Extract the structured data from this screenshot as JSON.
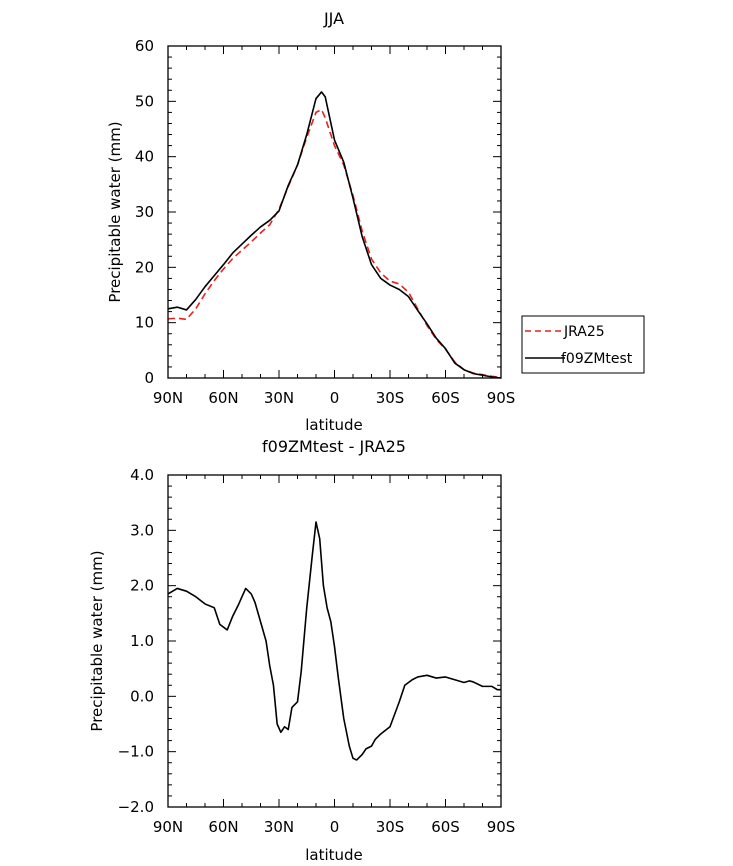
{
  "chart_data": [
    {
      "type": "line",
      "title": "JJA",
      "xlabel": "latitude",
      "ylabel": "Precipitable water (mm)",
      "xlim": [
        90,
        -90
      ],
      "ylim": [
        0,
        60
      ],
      "x_tick_values": [
        90,
        60,
        30,
        0,
        -30,
        -60,
        -90
      ],
      "x_tick_labels": [
        "90N",
        "60N",
        "30N",
        "0",
        "30S",
        "60S",
        "90S"
      ],
      "y_ticks": [
        0,
        10,
        20,
        30,
        40,
        50,
        60
      ],
      "grid": false,
      "legend": "right",
      "x": [
        90,
        85,
        80,
        75,
        70,
        65,
        60,
        55,
        50,
        45,
        40,
        35,
        30,
        25,
        20,
        15,
        10,
        7,
        5,
        0,
        -5,
        -10,
        -15,
        -20,
        -25,
        -30,
        -35,
        -40,
        -45,
        -50,
        -55,
        -60,
        -65,
        -70,
        -75,
        -80,
        -85,
        -90
      ],
      "series": [
        {
          "name": "JRA25",
          "color": "#e8211d",
          "dash": "dashed",
          "values": [
            10.7,
            10.8,
            10.6,
            12.5,
            15.2,
            17.6,
            19.7,
            21.6,
            23.1,
            24.6,
            26.2,
            27.7,
            30.5,
            34.6,
            38.5,
            43.5,
            48.0,
            48.5,
            47.0,
            42.0,
            38.5,
            33.0,
            26.5,
            21.5,
            19.0,
            17.5,
            17.0,
            15.5,
            12.5,
            9.5,
            7.0,
            5.2,
            2.9,
            1.5,
            0.9,
            0.6,
            0.3,
            0.1
          ]
        },
        {
          "name": "f09ZMtest",
          "color": "#000000",
          "dash": "solid",
          "values": [
            12.5,
            12.8,
            12.3,
            14.2,
            16.5,
            18.5,
            20.5,
            22.6,
            24.2,
            25.8,
            27.3,
            28.5,
            30.2,
            34.8,
            38.5,
            44.0,
            50.5,
            51.7,
            50.8,
            43.0,
            39.0,
            32.5,
            25.5,
            20.5,
            18.0,
            16.8,
            16.0,
            14.7,
            12.2,
            9.8,
            7.2,
            5.3,
            2.7,
            1.5,
            0.8,
            0.5,
            0.2,
            0.0
          ]
        }
      ]
    },
    {
      "type": "line",
      "title": "f09ZMtest - JRA25",
      "xlabel": "latitude",
      "ylabel": "Precipitable water (mm)",
      "xlim": [
        90,
        -90
      ],
      "ylim": [
        -2,
        4
      ],
      "x_tick_values": [
        90,
        60,
        30,
        0,
        -30,
        -60,
        -90
      ],
      "x_tick_labels": [
        "90N",
        "60N",
        "30N",
        "0",
        "30S",
        "60S",
        "90S"
      ],
      "y_ticks": [
        -2,
        -1,
        0,
        1,
        2,
        3,
        4
      ],
      "y_tick_labels": [
        "−2.0",
        "−1.0",
        "0.0",
        "1.0",
        "2.0",
        "3.0",
        "4.0"
      ],
      "grid": false,
      "series": [
        {
          "color": "#000000",
          "x": [
            90,
            85,
            80,
            75,
            70,
            65,
            62,
            58,
            55,
            52,
            50,
            48,
            45,
            43,
            40,
            37,
            35,
            33,
            31,
            29,
            27,
            25,
            23,
            20,
            18,
            15,
            12,
            10,
            8,
            6,
            4,
            2,
            0,
            -2,
            -5,
            -8,
            -10,
            -12,
            -15,
            -17,
            -20,
            -22,
            -25,
            -30,
            -35,
            -38,
            -40,
            -42,
            -45,
            -50,
            -55,
            -60,
            -65,
            -70,
            -73,
            -75,
            -80,
            -85,
            -88,
            -90
          ],
          "values": [
            1.85,
            1.95,
            1.9,
            1.8,
            1.67,
            1.6,
            1.3,
            1.2,
            1.45,
            1.65,
            1.8,
            1.95,
            1.85,
            1.7,
            1.35,
            1.0,
            0.55,
            0.2,
            -0.5,
            -0.65,
            -0.55,
            -0.6,
            -0.2,
            -0.1,
            0.45,
            1.6,
            2.55,
            3.15,
            2.85,
            2.0,
            1.6,
            1.35,
            0.9,
            0.35,
            -0.4,
            -0.9,
            -1.12,
            -1.15,
            -1.05,
            -0.95,
            -0.9,
            -0.78,
            -0.68,
            -0.55,
            -0.1,
            0.2,
            0.25,
            0.3,
            0.35,
            0.38,
            0.33,
            0.35,
            0.3,
            0.25,
            0.28,
            0.26,
            0.18,
            0.18,
            0.12,
            0.12
          ]
        }
      ]
    }
  ]
}
